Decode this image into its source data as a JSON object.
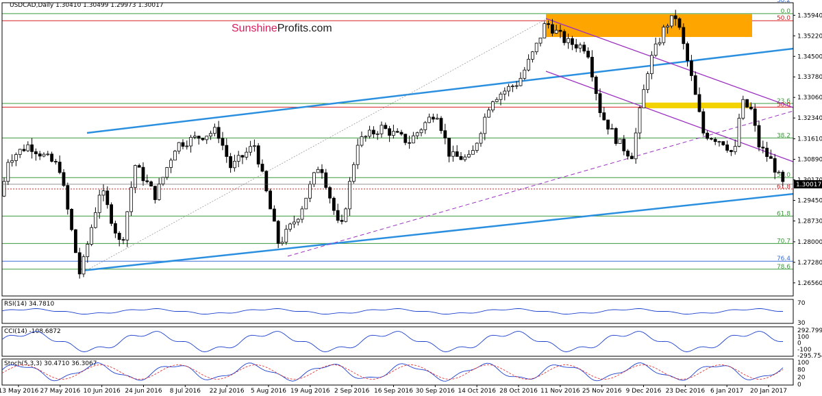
{
  "header": {
    "symbol_line": "USDCAD,Daily  1.30410 1.30499 1.29973 1.30017",
    "watermark_a": "Sunshine",
    "watermark_b": "Profits.com"
  },
  "chart_data": {
    "type": "candlestick",
    "symbol": "USDCAD",
    "timeframe": "Daily",
    "ohlc_last": {
      "open": 1.3041,
      "high": 1.30499,
      "low": 1.29973,
      "close": 1.30017
    },
    "last_price_label": "1.30017",
    "price_axis_ticks": [
      "1.35940",
      "1.35220",
      "1.34500",
      "1.33780",
      "1.33060",
      "1.32340",
      "1.31610",
      "1.30890",
      "1.30170",
      "1.29450",
      "1.28730",
      "1.28000",
      "1.27280",
      "1.26560"
    ],
    "date_axis_labels": [
      "13 May 2016",
      "27 May 2016",
      "10 Jun 2016",
      "24 Jun 2016",
      "8 Jul 2016",
      "22 Jul 2016",
      "5 Aug 2016",
      "19 Aug 2016",
      "2 Sep 2016",
      "16 Sep 2016",
      "30 Sep 2016",
      "14 Oct 2016",
      "28 Oct 2016",
      "11 Nov 2016",
      "25 Nov 2016",
      "9 Dec 2016",
      "23 Dec 2016",
      "6 Jan 2017",
      "20 Jan 2017"
    ],
    "fib_levels": [
      {
        "label": "38.2",
        "price": 1.3638,
        "color": "#3a6fd8"
      },
      {
        "label": "0.0",
        "price": 1.36,
        "color": "#3b9a3b"
      },
      {
        "label": "50.0",
        "price": 1.3575,
        "color": "#d62020"
      },
      {
        "label": "23.6",
        "price": 1.3285,
        "color": "#3b9a3b"
      },
      {
        "label": "50.0",
        "price": 1.3272,
        "color": "#d62020"
      },
      {
        "label": "38.2",
        "price": 1.3164,
        "color": "#3b9a3b"
      },
      {
        "label": "50.0",
        "price": 1.3025,
        "color": "#3b9a3b"
      },
      {
        "label": "61.8",
        "price": 1.2985,
        "color": "#d62020"
      },
      {
        "label": "61.8",
        "price": 1.289,
        "color": "#3b9a3b"
      },
      {
        "label": "70.7",
        "price": 1.2794,
        "color": "#3b9a3b"
      },
      {
        "label": "76.4",
        "price": 1.2732,
        "color": "#3a6fd8"
      },
      {
        "label": "78.6",
        "price": 1.2704,
        "color": "#3b9a3b"
      }
    ],
    "indicators": [
      {
        "label": "RSI(14) 34.7810",
        "levels": [
          "70",
          "30"
        ]
      },
      {
        "label": "CCI(14) -108.6872",
        "levels": [
          "292.799",
          "100",
          "0",
          "-100",
          "-295.7548"
        ]
      },
      {
        "label": "Stoch(5,3,3) 30.4710 36.3067",
        "levels": [
          "100",
          "80",
          "20",
          "0"
        ]
      }
    ],
    "colors": {
      "bull": "#ffffff",
      "bear": "#000000",
      "support": "#2b8fe0",
      "channel": "#9b30c0",
      "resistance_zone": "#ffa500",
      "support_zone": "#f2d300"
    }
  }
}
